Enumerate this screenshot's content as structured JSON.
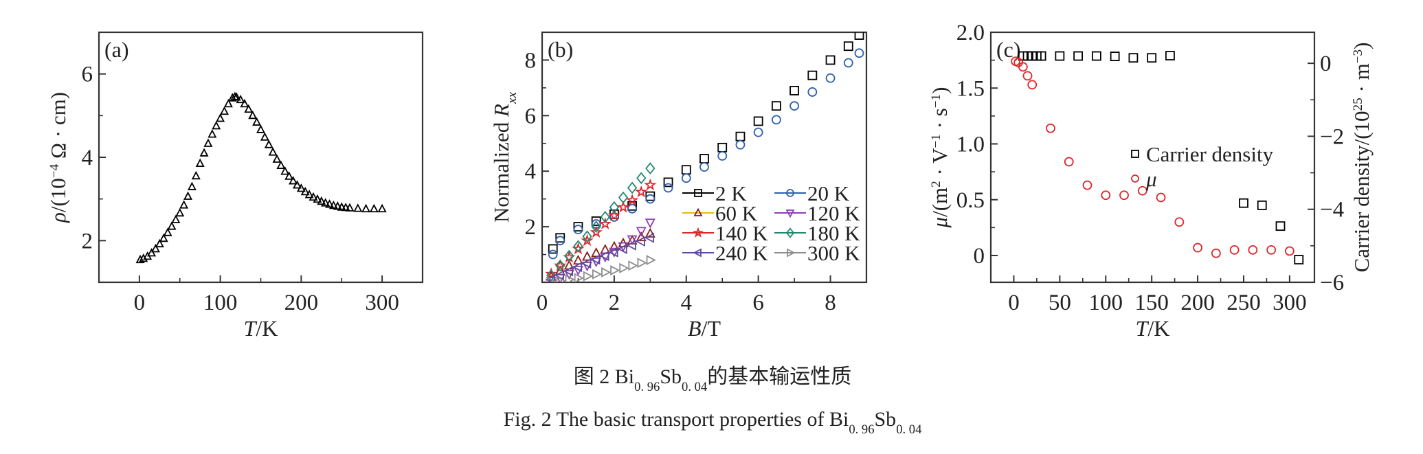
{
  "chart_data": [
    {
      "panel": "(a)",
      "type": "scatter",
      "xlabel": [
        {
          "text": "T",
          "italic": true
        },
        {
          "text": "/K"
        }
      ],
      "ylabel": [
        {
          "text": "ρ",
          "italic": true
        },
        {
          "text": "/(10"
        },
        {
          "text": "−4",
          "sup": true
        },
        {
          "text": " Ω · cm)"
        }
      ],
      "xlim": [
        -50,
        350
      ],
      "ylim": [
        1,
        7
      ],
      "xticks": [
        0,
        100,
        200,
        300
      ],
      "xtick_labels": [
        "0",
        "100",
        "200",
        "300"
      ],
      "xminor": [
        50,
        150,
        250
      ],
      "yticks": [
        2,
        4,
        6
      ],
      "ytick_labels": [
        "2",
        "4",
        "6"
      ],
      "yminor": [
        3,
        5
      ],
      "grid": false,
      "series": [
        {
          "marker": "triangle-up",
          "color": "#000000",
          "x": [
            1,
            5,
            10,
            15,
            20,
            25,
            30,
            35,
            40,
            45,
            50,
            55,
            60,
            65,
            70,
            75,
            80,
            85,
            90,
            95,
            100,
            105,
            110,
            115,
            118,
            120,
            125,
            130,
            135,
            140,
            145,
            150,
            155,
            160,
            165,
            170,
            175,
            180,
            185,
            190,
            195,
            200,
            205,
            210,
            215,
            220,
            225,
            230,
            235,
            240,
            245,
            250,
            255,
            260,
            270,
            280,
            290,
            300
          ],
          "y": [
            1.54,
            1.57,
            1.62,
            1.7,
            1.8,
            1.92,
            2.05,
            2.19,
            2.34,
            2.5,
            2.66,
            2.85,
            3.06,
            3.29,
            3.55,
            3.85,
            4.1,
            4.33,
            4.55,
            4.75,
            4.93,
            5.1,
            5.28,
            5.42,
            5.45,
            5.44,
            5.38,
            5.28,
            5.15,
            5.0,
            4.84,
            4.66,
            4.48,
            4.3,
            4.12,
            3.95,
            3.8,
            3.66,
            3.54,
            3.43,
            3.33,
            3.25,
            3.17,
            3.1,
            3.04,
            2.99,
            2.94,
            2.9,
            2.87,
            2.84,
            2.82,
            2.8,
            2.79,
            2.78,
            2.77,
            2.76,
            2.76,
            2.76
          ]
        }
      ]
    },
    {
      "panel": "(b)",
      "type": "scatter",
      "xlabel": [
        {
          "text": "B",
          "italic": true
        },
        {
          "text": "/T"
        }
      ],
      "ylabel": [
        {
          "text": "Normalized "
        },
        {
          "text": "R",
          "italic": true
        },
        {
          "text": "xx",
          "sub": true,
          "italic": true
        }
      ],
      "xlim": [
        0,
        9
      ],
      "ylim": [
        0,
        9
      ],
      "xticks": [
        0,
        2,
        4,
        6,
        8
      ],
      "xtick_labels": [
        "0",
        "2",
        "4",
        "6",
        "8"
      ],
      "xminor": [
        1,
        3,
        5,
        7
      ],
      "yticks": [
        2,
        4,
        6,
        8
      ],
      "ytick_labels": [
        "2",
        "4",
        "6",
        "8"
      ],
      "yminor": [
        1,
        3,
        5,
        7
      ],
      "grid": false,
      "legend_position": "bottom-right",
      "series": [
        {
          "name": "2 K",
          "marker": "square",
          "color": "#000000",
          "line_color": "#000000",
          "x": [
            0.3,
            0.5,
            1,
            1.5,
            2,
            2.5,
            3,
            3.5,
            4,
            4.5,
            5,
            5.5,
            6,
            6.5,
            7,
            7.5,
            8,
            8.5,
            8.8
          ],
          "y": [
            1.2,
            1.6,
            2.0,
            2.2,
            2.45,
            2.75,
            3.1,
            3.6,
            4.05,
            4.45,
            4.85,
            5.25,
            5.8,
            6.35,
            6.9,
            7.45,
            8.0,
            8.5,
            8.9
          ]
        },
        {
          "name": "20 K",
          "marker": "circle",
          "color": "#2e5fb0",
          "line_color": "#2e5fb0",
          "x": [
            0.3,
            0.5,
            1,
            1.5,
            2,
            2.5,
            3,
            3.5,
            4,
            4.5,
            5,
            5.5,
            6,
            6.5,
            7,
            7.5,
            8,
            8.5,
            8.8
          ],
          "y": [
            1.0,
            1.5,
            1.9,
            2.1,
            2.35,
            2.65,
            3.0,
            3.4,
            3.75,
            4.15,
            4.55,
            4.95,
            5.4,
            5.85,
            6.35,
            6.85,
            7.35,
            7.9,
            8.25
          ]
        },
        {
          "name": "60 K",
          "marker": "triangle-up",
          "color": "#8b1a1a",
          "line_color": "#e0c000",
          "x": [
            0.25,
            0.5,
            0.75,
            1,
            1.25,
            1.5,
            1.75,
            2,
            2.25,
            2.5,
            2.75,
            3
          ],
          "y": [
            0.2,
            0.4,
            0.6,
            0.78,
            0.92,
            1.05,
            1.17,
            1.28,
            1.4,
            1.5,
            1.62,
            1.75
          ]
        },
        {
          "name": "120 K",
          "marker": "triangle-down",
          "color": "#8e3fb0",
          "line_color": "#8e3fb0",
          "x": [
            0.25,
            0.5,
            0.75,
            1,
            1.25,
            1.5,
            1.75,
            2,
            2.25,
            2.5,
            2.75,
            3
          ],
          "y": [
            0.05,
            0.15,
            0.3,
            0.45,
            0.6,
            0.75,
            0.92,
            1.1,
            1.3,
            1.55,
            1.85,
            2.15
          ]
        },
        {
          "name": "140 K",
          "marker": "star",
          "color": "#e0262a",
          "line_color": "#e0262a",
          "x": [
            0.25,
            0.5,
            0.75,
            1,
            1.25,
            1.5,
            1.75,
            2,
            2.25,
            2.5,
            2.75,
            3
          ],
          "y": [
            0.3,
            0.6,
            0.9,
            1.2,
            1.5,
            1.8,
            2.1,
            2.4,
            2.7,
            2.95,
            3.25,
            3.5
          ]
        },
        {
          "name": "180 K",
          "marker": "diamond",
          "color": "#1f8a70",
          "line_color": "#1f8a70",
          "x": [
            0.25,
            0.5,
            0.75,
            1,
            1.25,
            1.5,
            1.75,
            2,
            2.25,
            2.5,
            2.75,
            3
          ],
          "y": [
            0.25,
            0.6,
            0.95,
            1.3,
            1.65,
            2.0,
            2.35,
            2.7,
            3.05,
            3.4,
            3.75,
            4.1
          ]
        },
        {
          "name": "240 K",
          "marker": "triangle-left",
          "color": "#5b4aa0",
          "line_color": "#5b4aa0",
          "x": [
            0.25,
            0.5,
            0.75,
            1,
            1.25,
            1.5,
            1.75,
            2,
            2.25,
            2.5,
            2.75,
            3
          ],
          "y": [
            0.1,
            0.25,
            0.4,
            0.55,
            0.68,
            0.82,
            0.95,
            1.08,
            1.2,
            1.33,
            1.47,
            1.6
          ]
        },
        {
          "name": "300 K",
          "marker": "triangle-right",
          "color": "#8c8c8c",
          "line_color": "#8c8c8c",
          "x": [
            0.25,
            0.5,
            0.75,
            1,
            1.25,
            1.5,
            1.75,
            2,
            2.25,
            2.5,
            2.75,
            3
          ],
          "y": [
            0.02,
            0.05,
            0.1,
            0.15,
            0.22,
            0.29,
            0.36,
            0.43,
            0.51,
            0.6,
            0.7,
            0.8
          ]
        }
      ]
    },
    {
      "panel": "(c)",
      "type": "scatter",
      "xlabel": [
        {
          "text": "T",
          "italic": true
        },
        {
          "text": "/K"
        }
      ],
      "ylabel": [
        {
          "text": "μ",
          "italic": true
        },
        {
          "text": "/(m"
        },
        {
          "text": "2",
          "sup": true
        },
        {
          "text": " · V"
        },
        {
          "text": "−1",
          "sup": true
        },
        {
          "text": " · s"
        },
        {
          "text": "−1",
          "sup": true
        },
        {
          "text": ")"
        }
      ],
      "y2label": [
        {
          "text": "Carrier density/(10"
        },
        {
          "text": "25",
          "sup": true
        },
        {
          "text": " · m"
        },
        {
          "text": "−3",
          "sup": true
        },
        {
          "text": ")"
        }
      ],
      "xlim": [
        -25,
        327
      ],
      "ylim": [
        -0.24,
        2.0
      ],
      "y2lim": [
        -6,
        0.85
      ],
      "xticks": [
        0,
        50,
        100,
        150,
        200,
        250,
        300
      ],
      "xtick_labels": [
        "0",
        "50",
        "100",
        "150",
        "200",
        "250",
        "300"
      ],
      "xminor": [
        25,
        75,
        125,
        175,
        225,
        275
      ],
      "yticks": [
        0,
        0.5,
        1.0,
        1.5,
        2.0
      ],
      "ytick_labels": [
        "0",
        "0.5",
        "1.0",
        "1.5",
        "2.0"
      ],
      "yminor": [
        0.25,
        0.75,
        1.25,
        1.75
      ],
      "y2ticks": [
        0,
        -2,
        -4,
        -6
      ],
      "y2tick_labels": [
        "0",
        "−2",
        "−4",
        "−6"
      ],
      "y2minor": [
        -1,
        -3,
        -5
      ],
      "grid": false,
      "legend_position": "center-right",
      "series": [
        {
          "name": "Carrier density",
          "axis": "right",
          "marker": "square",
          "color": "#000000",
          "x": [
            10,
            15,
            20,
            25,
            30,
            50,
            70,
            90,
            110,
            130,
            150,
            170,
            250,
            270,
            290,
            310
          ],
          "y": [
            0.2,
            0.2,
            0.2,
            0.2,
            0.2,
            0.2,
            0.2,
            0.2,
            0.19,
            0.15,
            0.15,
            0.21,
            -3.83,
            -3.89,
            -4.46,
            -5.38
          ]
        },
        {
          "name": "μ",
          "name_italic": true,
          "axis": "left",
          "marker": "circle",
          "color": "#e0262a",
          "x": [
            2,
            5,
            10,
            15,
            20,
            40,
            60,
            80,
            100,
            120,
            140,
            160,
            180,
            200,
            220,
            240,
            260,
            280,
            300
          ],
          "y": [
            1.74,
            1.73,
            1.69,
            1.61,
            1.53,
            1.14,
            0.84,
            0.63,
            0.54,
            0.54,
            0.58,
            0.52,
            0.3,
            0.07,
            0.02,
            0.05,
            0.05,
            0.05,
            0.04
          ]
        }
      ]
    }
  ],
  "caption": {
    "zh": [
      {
        "text": "图 2    Bi"
      },
      {
        "text": "0. 96",
        "sub": true
      },
      {
        "text": "Sb"
      },
      {
        "text": "0. 04",
        "sub": true
      },
      {
        "text": "的基本输运性质"
      }
    ],
    "en": [
      {
        "text": "Fig. 2   The basic transport properties of Bi"
      },
      {
        "text": "0. 96",
        "sub": true
      },
      {
        "text": "Sb"
      },
      {
        "text": "0. 04",
        "sub": true
      }
    ]
  }
}
